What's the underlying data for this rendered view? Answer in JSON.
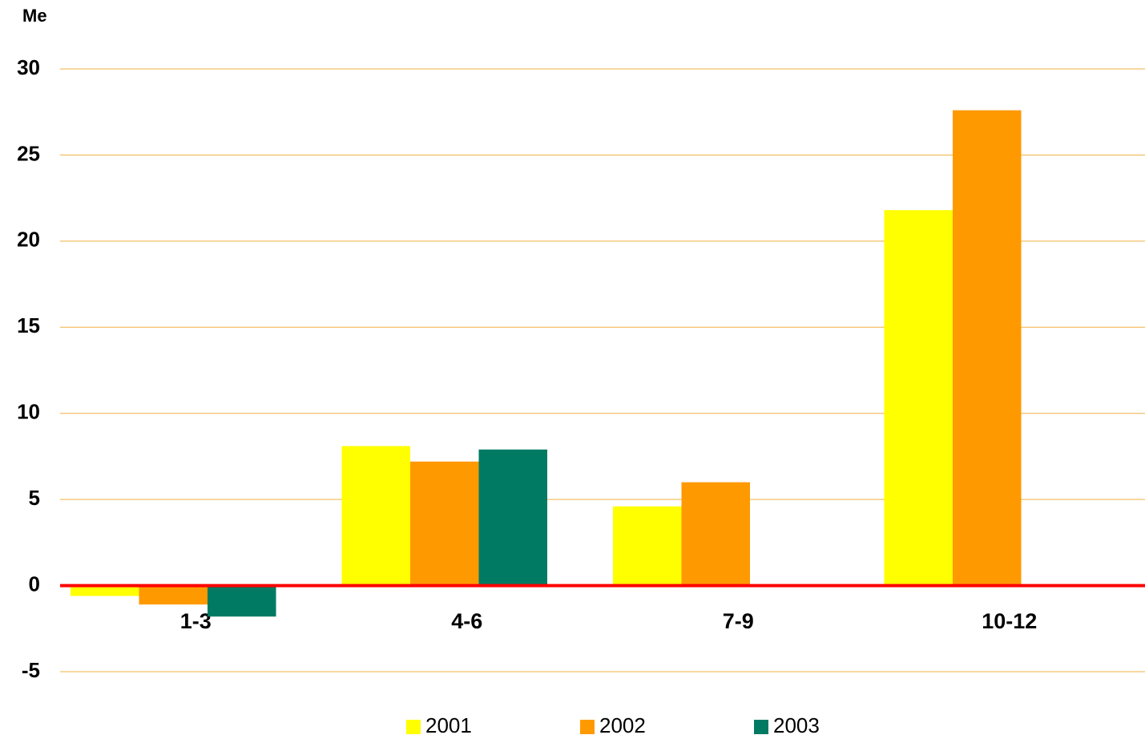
{
  "chart_data": {
    "type": "bar",
    "y_label": "Me",
    "categories": [
      "1-3",
      "4-6",
      "7-9",
      "10-12"
    ],
    "series": [
      {
        "name": "2001",
        "color": "#ffff00",
        "values": [
          -0.6,
          8.1,
          4.6,
          21.8
        ]
      },
      {
        "name": "2002",
        "color": "#ff9900",
        "values": [
          -1.1,
          7.2,
          6.0,
          27.6
        ]
      },
      {
        "name": "2003",
        "color": "#007a63",
        "values": [
          -1.8,
          7.9,
          null,
          null
        ]
      }
    ],
    "ylim": [
      -5,
      30
    ],
    "yticks": [
      -5,
      0,
      5,
      10,
      15,
      20,
      25,
      30
    ],
    "grid": true,
    "grid_color": "#f0b040",
    "zero_line_color": "#ff0000",
    "legend": "bottom"
  }
}
